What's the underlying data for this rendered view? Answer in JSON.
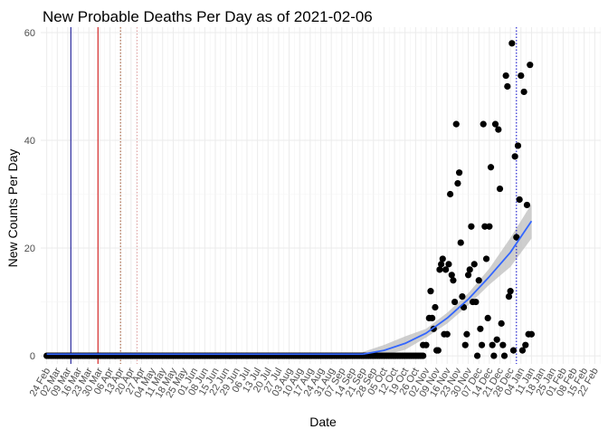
{
  "chart_data": {
    "type": "scatter",
    "title": "New Probable Deaths Per Day as of 2021-02-06",
    "xlabel": "Date",
    "ylabel": "New Counts Per Day",
    "ylim": [
      -1.5,
      61
    ],
    "yticks": [
      0,
      20,
      40,
      60
    ],
    "x_range": [
      "2020-02-20",
      "2021-02-26"
    ],
    "x_ticks": [
      "2020-02-24",
      "2020-03-02",
      "2020-03-09",
      "2020-03-16",
      "2020-03-23",
      "2020-03-30",
      "2020-04-06",
      "2020-04-13",
      "2020-04-20",
      "2020-04-27",
      "2020-05-04",
      "2020-05-11",
      "2020-05-18",
      "2020-05-25",
      "2020-06-01",
      "2020-06-08",
      "2020-06-15",
      "2020-06-22",
      "2020-06-29",
      "2020-07-06",
      "2020-07-13",
      "2020-07-20",
      "2020-07-27",
      "2020-08-03",
      "2020-08-10",
      "2020-08-17",
      "2020-08-24",
      "2020-08-31",
      "2020-09-07",
      "2020-09-14",
      "2020-09-21",
      "2020-09-28",
      "2020-10-05",
      "2020-10-12",
      "2020-10-19",
      "2020-10-26",
      "2020-11-02",
      "2020-11-09",
      "2020-11-16",
      "2020-11-23",
      "2020-11-30",
      "2020-12-07",
      "2020-12-14",
      "2020-12-21",
      "2020-12-28",
      "2021-01-04",
      "2021-01-11",
      "2021-01-18",
      "2021-01-25",
      "2021-02-01",
      "2021-02-08",
      "2021-02-15",
      "2021-02-22"
    ],
    "x_tick_labels": [
      "24 Feb",
      "02 Mar",
      "09 Mar",
      "16 Mar",
      "23 Mar",
      "30 Mar",
      "06 Apr",
      "13 Apr",
      "20 Apr",
      "27 Apr",
      "04 May",
      "11 May",
      "18 May",
      "25 May",
      "01 Jun",
      "08 Jun",
      "15 Jun",
      "22 Jun",
      "29 Jun",
      "06 Jul",
      "13 Jul",
      "20 Jul",
      "27 Jul",
      "03 Aug",
      "10 Aug",
      "17 Aug",
      "24 Aug",
      "31 Aug",
      "07 Sep",
      "14 Sep",
      "21 Sep",
      "28 Sep",
      "05 Oct",
      "12 Oct",
      "19 Oct",
      "26 Oct",
      "02 Nov",
      "09 Nov",
      "16 Nov",
      "23 Nov",
      "30 Nov",
      "07 Dec",
      "14 Dec",
      "21 Dec",
      "28 Dec",
      "04 Jan",
      "11 Jan",
      "18 Jan",
      "25 Jan",
      "01 Feb",
      "08 Feb",
      "15 Feb",
      "22 Feb"
    ],
    "zero_run": {
      "start": "2020-02-24",
      "end": "2020-10-31",
      "value": 0
    },
    "series": [
      {
        "name": "daily",
        "points": [
          [
            "2020-10-31",
            2
          ],
          [
            "2020-11-02",
            2
          ],
          [
            "2020-11-04",
            7
          ],
          [
            "2020-11-05",
            12
          ],
          [
            "2020-11-06",
            7
          ],
          [
            "2020-11-07",
            5
          ],
          [
            "2020-11-08",
            9
          ],
          [
            "2020-11-09",
            1
          ],
          [
            "2020-11-10",
            1
          ],
          [
            "2020-11-11",
            16
          ],
          [
            "2020-11-12",
            17
          ],
          [
            "2020-11-13",
            18
          ],
          [
            "2020-11-14",
            4
          ],
          [
            "2020-11-15",
            16
          ],
          [
            "2020-11-16",
            4
          ],
          [
            "2020-11-17",
            17
          ],
          [
            "2020-11-18",
            30
          ],
          [
            "2020-11-19",
            15
          ],
          [
            "2020-11-20",
            14
          ],
          [
            "2020-11-21",
            10
          ],
          [
            "2020-11-22",
            43
          ],
          [
            "2020-11-23",
            32
          ],
          [
            "2020-11-24",
            34
          ],
          [
            "2020-11-25",
            21
          ],
          [
            "2020-11-26",
            11
          ],
          [
            "2020-11-27",
            9
          ],
          [
            "2020-11-28",
            2
          ],
          [
            "2020-11-29",
            4
          ],
          [
            "2020-11-30",
            15
          ],
          [
            "2020-12-01",
            16
          ],
          [
            "2020-12-02",
            24
          ],
          [
            "2020-12-03",
            10
          ],
          [
            "2020-12-04",
            17
          ],
          [
            "2020-12-05",
            10
          ],
          [
            "2020-12-06",
            0
          ],
          [
            "2020-12-07",
            14
          ],
          [
            "2020-12-08",
            5
          ],
          [
            "2020-12-09",
            2
          ],
          [
            "2020-12-10",
            43
          ],
          [
            "2020-12-11",
            24
          ],
          [
            "2020-12-12",
            18
          ],
          [
            "2020-12-13",
            7
          ],
          [
            "2020-12-14",
            24
          ],
          [
            "2020-12-15",
            35
          ],
          [
            "2020-12-16",
            2
          ],
          [
            "2020-12-17",
            0
          ],
          [
            "2020-12-18",
            43
          ],
          [
            "2020-12-19",
            3
          ],
          [
            "2020-12-20",
            42
          ],
          [
            "2020-12-21",
            31
          ],
          [
            "2020-12-22",
            6
          ],
          [
            "2020-12-23",
            2
          ],
          [
            "2020-12-24",
            0
          ],
          [
            "2020-12-25",
            52
          ],
          [
            "2020-12-26",
            50
          ],
          [
            "2020-12-27",
            11
          ],
          [
            "2020-12-28",
            12
          ],
          [
            "2020-12-29",
            58
          ],
          [
            "2020-12-30",
            1
          ],
          [
            "2020-12-31",
            37
          ],
          [
            "2021-01-01",
            22
          ],
          [
            "2021-01-02",
            39
          ],
          [
            "2021-01-03",
            29
          ],
          [
            "2021-01-04",
            52
          ],
          [
            "2021-01-05",
            1
          ],
          [
            "2021-01-06",
            49
          ],
          [
            "2021-01-07",
            2
          ],
          [
            "2021-01-08",
            28
          ],
          [
            "2021-01-09",
            4
          ],
          [
            "2021-01-10",
            54
          ],
          [
            "2021-01-11",
            4
          ]
        ]
      }
    ],
    "smooth": {
      "name": "loess",
      "x": [
        "2020-09-21",
        "2020-10-05",
        "2020-10-19",
        "2020-11-02",
        "2020-11-16",
        "2020-11-30",
        "2020-12-14",
        "2020-12-28",
        "2021-01-11"
      ],
      "y": [
        0.3,
        1.0,
        2.3,
        4.2,
        7.0,
        10.5,
        14.7,
        19.2,
        25.0
      ],
      "ci_low": [
        0.0,
        0.1,
        1.1,
        3.4,
        6.0,
        9.4,
        13.2,
        16.5,
        21.8
      ],
      "ci_high": [
        0.7,
        2.0,
        3.6,
        5.0,
        8.0,
        11.6,
        16.2,
        21.9,
        28.2
      ]
    },
    "vlines": [
      {
        "date": "2020-03-11",
        "color": "#00008B",
        "style": "solid"
      },
      {
        "date": "2020-03-29",
        "color": "#CC0000",
        "style": "solid"
      },
      {
        "date": "2020-04-13",
        "color": "#A0522D",
        "style": "dotted"
      },
      {
        "date": "2020-04-24",
        "color": "#E0A0A0",
        "style": "dotted"
      },
      {
        "date": "2021-01-01",
        "color": "#0000CC",
        "style": "dotted"
      }
    ],
    "colors": {
      "points": "#000000",
      "smooth_line": "#3366FF",
      "ribbon": "#BDBDBD",
      "grid": "#EBEBEB"
    }
  }
}
